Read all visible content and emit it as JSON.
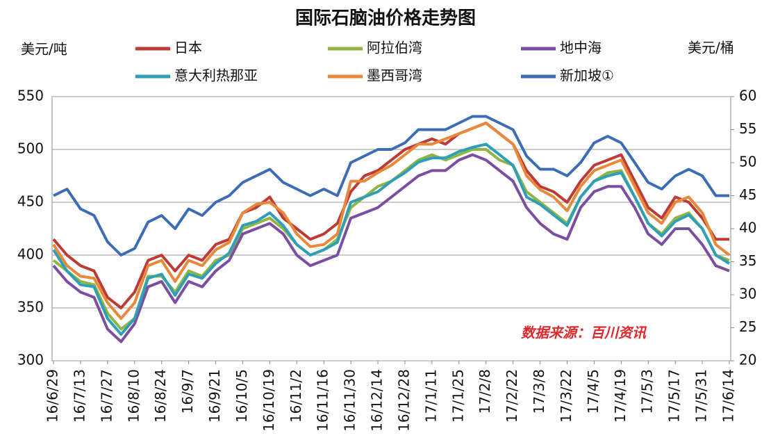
{
  "chart_data": {
    "type": "line",
    "title": "国际石脑油价格走势图",
    "y_label": "美元/吨",
    "y2_label": "美元/桶",
    "annotation": "数据来源：百川资讯",
    "categories": [
      "16/6/29",
      null,
      "16/7/13",
      null,
      "16/7/27",
      null,
      "16/8/10",
      null,
      "16/8/24",
      null,
      "16/9/7",
      null,
      "16/9/21",
      null,
      "16/10/5",
      null,
      "16/10/19",
      null,
      "16/11/2",
      null,
      "16/11/16",
      null,
      "16/11/30",
      null,
      "16/12/14",
      null,
      "16/12/28",
      null,
      "17/1/11",
      null,
      "17/1/25",
      null,
      "17/2/8",
      null,
      "17/2/22",
      null,
      "17/3/8",
      null,
      "17/3/22",
      null,
      "17/4/5",
      null,
      "17/4/19",
      null,
      "17/5/3",
      null,
      "17/5/17",
      null,
      "17/5/31",
      null,
      "17/6/14"
    ],
    "ylim": [
      300,
      550
    ],
    "yticks": [
      300,
      350,
      400,
      450,
      500,
      550
    ],
    "y2lim": [
      20,
      60
    ],
    "y2ticks": [
      20,
      25,
      30,
      35,
      40,
      45,
      50,
      55,
      60
    ],
    "grid": true,
    "series": [
      {
        "name": "日本",
        "color": "#be3a35",
        "values": [
          415,
          400,
          390,
          385,
          360,
          350,
          365,
          395,
          400,
          385,
          400,
          395,
          410,
          415,
          440,
          445,
          455,
          435,
          425,
          415,
          420,
          430,
          460,
          475,
          480,
          490,
          500,
          505,
          510,
          505,
          515,
          520,
          525,
          515,
          505,
          480,
          465,
          460,
          450,
          470,
          485,
          490,
          495,
          470,
          445,
          435,
          455,
          450,
          435,
          415,
          415
        ]
      },
      {
        "name": "阿拉伯湾",
        "color": "#8fb547",
        "values": [
          395,
          385,
          375,
          372,
          345,
          330,
          340,
          380,
          380,
          365,
          385,
          380,
          395,
          400,
          425,
          430,
          435,
          425,
          410,
          400,
          405,
          415,
          445,
          455,
          465,
          470,
          480,
          490,
          495,
          490,
          495,
          500,
          500,
          490,
          485,
          460,
          450,
          440,
          430,
          455,
          470,
          478,
          480,
          455,
          430,
          420,
          435,
          440,
          425,
          400,
          395
        ]
      },
      {
        "name": "地中海",
        "color": "#7a4f9f",
        "values": [
          390,
          375,
          365,
          360,
          330,
          318,
          335,
          370,
          375,
          355,
          375,
          370,
          385,
          395,
          420,
          425,
          430,
          420,
          400,
          390,
          395,
          400,
          435,
          440,
          445,
          455,
          465,
          475,
          480,
          480,
          490,
          495,
          490,
          480,
          470,
          445,
          430,
          420,
          415,
          445,
          460,
          465,
          465,
          445,
          420,
          410,
          425,
          425,
          410,
          390,
          385
        ]
      },
      {
        "name": "意大利热那亚",
        "color": "#2f9fb5",
        "values": [
          405,
          385,
          372,
          370,
          340,
          325,
          340,
          378,
          382,
          362,
          382,
          378,
          392,
          402,
          428,
          432,
          440,
          428,
          410,
          400,
          405,
          412,
          450,
          455,
          460,
          470,
          478,
          488,
          492,
          492,
          498,
          502,
          505,
          495,
          485,
          455,
          448,
          438,
          428,
          455,
          470,
          475,
          478,
          455,
          430,
          418,
          432,
          438,
          425,
          400,
          392
        ]
      },
      {
        "name": "墨西哥湾",
        "color": "#e8883a",
        "values": [
          410,
          390,
          380,
          378,
          355,
          340,
          355,
          390,
          395,
          375,
          395,
          390,
          405,
          412,
          440,
          448,
          450,
          440,
          420,
          408,
          410,
          420,
          470,
          470,
          478,
          485,
          495,
          505,
          505,
          510,
          515,
          520,
          525,
          515,
          505,
          475,
          462,
          455,
          442,
          465,
          480,
          485,
          490,
          465,
          440,
          430,
          450,
          455,
          440,
          410,
          400
        ]
      },
      {
        "name": "新加坡①",
        "color": "#3c6db4",
        "axis": "y2",
        "values": [
          45,
          46,
          43,
          42,
          38,
          36,
          37,
          41,
          42,
          40,
          43,
          42,
          44,
          45,
          47,
          48,
          49,
          47,
          46,
          45,
          46,
          45,
          50,
          51,
          52,
          52,
          53,
          55,
          55,
          55,
          56,
          57,
          57,
          56,
          55,
          51,
          49,
          49,
          48,
          50,
          53,
          54,
          53,
          50,
          47,
          46,
          48,
          49,
          48,
          45,
          45
        ]
      }
    ]
  }
}
